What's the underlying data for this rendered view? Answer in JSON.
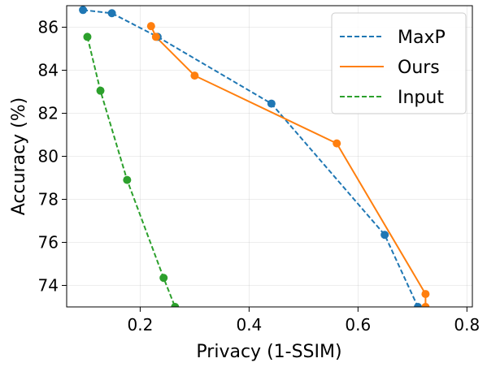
{
  "chart_data": {
    "type": "line",
    "xlabel": "Privacy (1-SSIM)",
    "ylabel": "Accuracy (%)",
    "xlim": [
      0.065,
      0.81
    ],
    "ylim": [
      73.0,
      87.0
    ],
    "xticks": [
      0.2,
      0.4,
      0.6,
      0.8
    ],
    "xtick_labels": [
      "0.2",
      "0.4",
      "0.6",
      "0.8"
    ],
    "yticks": [
      74,
      76,
      78,
      80,
      82,
      84,
      86
    ],
    "ytick_labels": [
      "74",
      "76",
      "78",
      "80",
      "82",
      "84",
      "86"
    ],
    "grid": true,
    "legend_position": "top-right",
    "series": [
      {
        "name": "MaxP",
        "color": "#1f77b4",
        "linestyle": "dashed",
        "marker": "circle",
        "x": [
          0.095,
          0.148,
          0.232,
          0.441,
          0.649,
          0.71
        ],
        "y": [
          86.8,
          86.65,
          85.55,
          82.45,
          76.35,
          73.0
        ]
      },
      {
        "name": "Ours",
        "color": "#ff7f0e",
        "linestyle": "solid",
        "marker": "circle",
        "x": [
          0.22,
          0.229,
          0.3,
          0.561,
          0.724,
          0.724
        ],
        "y": [
          86.05,
          85.55,
          83.75,
          80.6,
          73.6,
          73.0
        ]
      },
      {
        "name": "Input",
        "color": "#2ca02c",
        "linestyle": "dashed",
        "marker": "circle",
        "x": [
          0.103,
          0.127,
          0.176,
          0.243,
          0.264
        ],
        "y": [
          85.55,
          83.05,
          78.9,
          74.35,
          73.0
        ]
      }
    ]
  }
}
